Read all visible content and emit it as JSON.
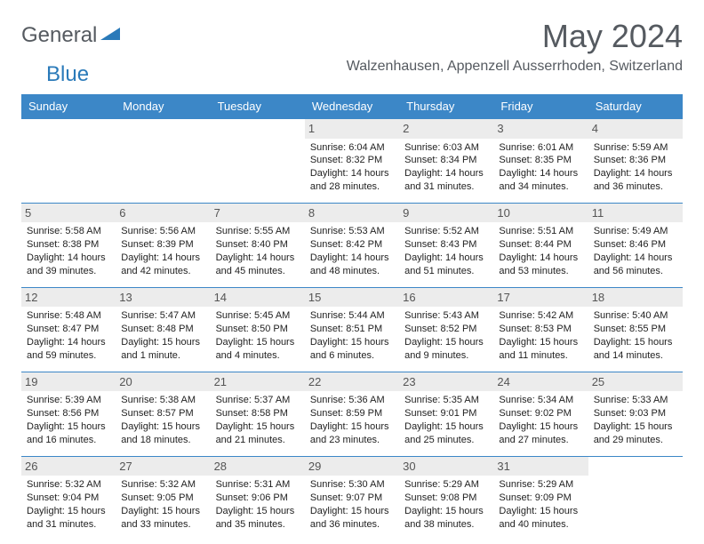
{
  "logo": {
    "part1": "General",
    "part2": "Blue"
  },
  "title": "May 2024",
  "location": "Walzenhausen, Appenzell Ausserrhoden, Switzerland",
  "colors": {
    "header_bg": "#3c87c7",
    "header_text": "#ffffff",
    "daynum_bg": "#ececec",
    "border": "#3c87c7",
    "text": "#222222",
    "logo_gray": "#555a60",
    "logo_blue": "#2a7ab9"
  },
  "weekdays": [
    "Sunday",
    "Monday",
    "Tuesday",
    "Wednesday",
    "Thursday",
    "Friday",
    "Saturday"
  ],
  "weeks": [
    [
      {
        "empty": true
      },
      {
        "empty": true
      },
      {
        "empty": true
      },
      {
        "day": "1",
        "sunrise": "Sunrise: 6:04 AM",
        "sunset": "Sunset: 8:32 PM",
        "daylight": "Daylight: 14 hours and 28 minutes."
      },
      {
        "day": "2",
        "sunrise": "Sunrise: 6:03 AM",
        "sunset": "Sunset: 8:34 PM",
        "daylight": "Daylight: 14 hours and 31 minutes."
      },
      {
        "day": "3",
        "sunrise": "Sunrise: 6:01 AM",
        "sunset": "Sunset: 8:35 PM",
        "daylight": "Daylight: 14 hours and 34 minutes."
      },
      {
        "day": "4",
        "sunrise": "Sunrise: 5:59 AM",
        "sunset": "Sunset: 8:36 PM",
        "daylight": "Daylight: 14 hours and 36 minutes."
      }
    ],
    [
      {
        "day": "5",
        "sunrise": "Sunrise: 5:58 AM",
        "sunset": "Sunset: 8:38 PM",
        "daylight": "Daylight: 14 hours and 39 minutes."
      },
      {
        "day": "6",
        "sunrise": "Sunrise: 5:56 AM",
        "sunset": "Sunset: 8:39 PM",
        "daylight": "Daylight: 14 hours and 42 minutes."
      },
      {
        "day": "7",
        "sunrise": "Sunrise: 5:55 AM",
        "sunset": "Sunset: 8:40 PM",
        "daylight": "Daylight: 14 hours and 45 minutes."
      },
      {
        "day": "8",
        "sunrise": "Sunrise: 5:53 AM",
        "sunset": "Sunset: 8:42 PM",
        "daylight": "Daylight: 14 hours and 48 minutes."
      },
      {
        "day": "9",
        "sunrise": "Sunrise: 5:52 AM",
        "sunset": "Sunset: 8:43 PM",
        "daylight": "Daylight: 14 hours and 51 minutes."
      },
      {
        "day": "10",
        "sunrise": "Sunrise: 5:51 AM",
        "sunset": "Sunset: 8:44 PM",
        "daylight": "Daylight: 14 hours and 53 minutes."
      },
      {
        "day": "11",
        "sunrise": "Sunrise: 5:49 AM",
        "sunset": "Sunset: 8:46 PM",
        "daylight": "Daylight: 14 hours and 56 minutes."
      }
    ],
    [
      {
        "day": "12",
        "sunrise": "Sunrise: 5:48 AM",
        "sunset": "Sunset: 8:47 PM",
        "daylight": "Daylight: 14 hours and 59 minutes."
      },
      {
        "day": "13",
        "sunrise": "Sunrise: 5:47 AM",
        "sunset": "Sunset: 8:48 PM",
        "daylight": "Daylight: 15 hours and 1 minute."
      },
      {
        "day": "14",
        "sunrise": "Sunrise: 5:45 AM",
        "sunset": "Sunset: 8:50 PM",
        "daylight": "Daylight: 15 hours and 4 minutes."
      },
      {
        "day": "15",
        "sunrise": "Sunrise: 5:44 AM",
        "sunset": "Sunset: 8:51 PM",
        "daylight": "Daylight: 15 hours and 6 minutes."
      },
      {
        "day": "16",
        "sunrise": "Sunrise: 5:43 AM",
        "sunset": "Sunset: 8:52 PM",
        "daylight": "Daylight: 15 hours and 9 minutes."
      },
      {
        "day": "17",
        "sunrise": "Sunrise: 5:42 AM",
        "sunset": "Sunset: 8:53 PM",
        "daylight": "Daylight: 15 hours and 11 minutes."
      },
      {
        "day": "18",
        "sunrise": "Sunrise: 5:40 AM",
        "sunset": "Sunset: 8:55 PM",
        "daylight": "Daylight: 15 hours and 14 minutes."
      }
    ],
    [
      {
        "day": "19",
        "sunrise": "Sunrise: 5:39 AM",
        "sunset": "Sunset: 8:56 PM",
        "daylight": "Daylight: 15 hours and 16 minutes."
      },
      {
        "day": "20",
        "sunrise": "Sunrise: 5:38 AM",
        "sunset": "Sunset: 8:57 PM",
        "daylight": "Daylight: 15 hours and 18 minutes."
      },
      {
        "day": "21",
        "sunrise": "Sunrise: 5:37 AM",
        "sunset": "Sunset: 8:58 PM",
        "daylight": "Daylight: 15 hours and 21 minutes."
      },
      {
        "day": "22",
        "sunrise": "Sunrise: 5:36 AM",
        "sunset": "Sunset: 8:59 PM",
        "daylight": "Daylight: 15 hours and 23 minutes."
      },
      {
        "day": "23",
        "sunrise": "Sunrise: 5:35 AM",
        "sunset": "Sunset: 9:01 PM",
        "daylight": "Daylight: 15 hours and 25 minutes."
      },
      {
        "day": "24",
        "sunrise": "Sunrise: 5:34 AM",
        "sunset": "Sunset: 9:02 PM",
        "daylight": "Daylight: 15 hours and 27 minutes."
      },
      {
        "day": "25",
        "sunrise": "Sunrise: 5:33 AM",
        "sunset": "Sunset: 9:03 PM",
        "daylight": "Daylight: 15 hours and 29 minutes."
      }
    ],
    [
      {
        "day": "26",
        "sunrise": "Sunrise: 5:32 AM",
        "sunset": "Sunset: 9:04 PM",
        "daylight": "Daylight: 15 hours and 31 minutes."
      },
      {
        "day": "27",
        "sunrise": "Sunrise: 5:32 AM",
        "sunset": "Sunset: 9:05 PM",
        "daylight": "Daylight: 15 hours and 33 minutes."
      },
      {
        "day": "28",
        "sunrise": "Sunrise: 5:31 AM",
        "sunset": "Sunset: 9:06 PM",
        "daylight": "Daylight: 15 hours and 35 minutes."
      },
      {
        "day": "29",
        "sunrise": "Sunrise: 5:30 AM",
        "sunset": "Sunset: 9:07 PM",
        "daylight": "Daylight: 15 hours and 36 minutes."
      },
      {
        "day": "30",
        "sunrise": "Sunrise: 5:29 AM",
        "sunset": "Sunset: 9:08 PM",
        "daylight": "Daylight: 15 hours and 38 minutes."
      },
      {
        "day": "31",
        "sunrise": "Sunrise: 5:29 AM",
        "sunset": "Sunset: 9:09 PM",
        "daylight": "Daylight: 15 hours and 40 minutes."
      },
      {
        "empty": true
      }
    ]
  ]
}
